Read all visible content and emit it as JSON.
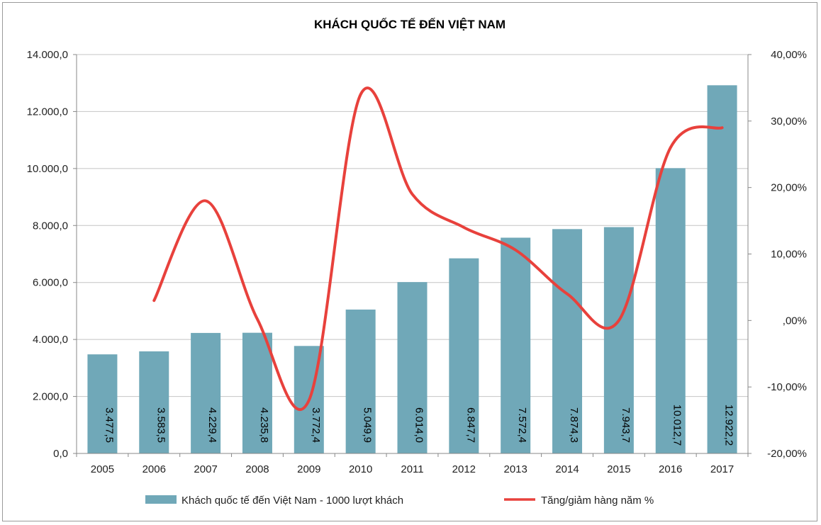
{
  "chart_data": {
    "type": "bar",
    "title": "KHÁCH QUỐC TẾ ĐẾN VIỆT NAM",
    "categories": [
      "2005",
      "2006",
      "2007",
      "2008",
      "2009",
      "2010",
      "2011",
      "2012",
      "2013",
      "2014",
      "2015",
      "2016",
      "2017"
    ],
    "series": [
      {
        "name": "Khách quốc tế đến Việt Nam - 1000 lượt khách",
        "type": "bar",
        "axis": "left",
        "color": "#70a8b8",
        "values": [
          3477.5,
          3583.5,
          4229.4,
          4235.8,
          3772.4,
          5049.9,
          6014.0,
          6847.7,
          7572.4,
          7874.3,
          7943.7,
          10012.7,
          12922.2
        ],
        "labels": [
          "3.477,5",
          "3.583,5",
          "4.229,4",
          "4.235,8",
          "3.772,4",
          "5.049,9",
          "6.014,0",
          "6.847,7",
          "7.572,4",
          "7.874,3",
          "7.943,7",
          "10.012,7",
          "12.922,2"
        ]
      },
      {
        "name": "Tăng/giảm hàng năm %",
        "type": "line",
        "smooth": true,
        "axis": "right",
        "color": "#e8413c",
        "values": [
          null,
          3.0,
          18.0,
          0.2,
          -12.0,
          34.0,
          19.0,
          14.0,
          10.6,
          4.0,
          0.0,
          26.0,
          29.0
        ]
      }
    ],
    "yaxis_left": {
      "min": 0,
      "max": 14000,
      "step": 2000,
      "tick_labels": [
        "0,0",
        "2.000,0",
        "4.000,0",
        "6.000,0",
        "8.000,0",
        "10.000,0",
        "12.000,0",
        "14.000,0"
      ]
    },
    "yaxis_right": {
      "min": -20,
      "max": 40,
      "step": 10,
      "tick_labels": [
        "-20,00%",
        "-10,00%",
        ",00%",
        "10,00%",
        "20,00%",
        "30,00%",
        "40,00%"
      ]
    },
    "grid": true,
    "legend_position": "bottom"
  }
}
